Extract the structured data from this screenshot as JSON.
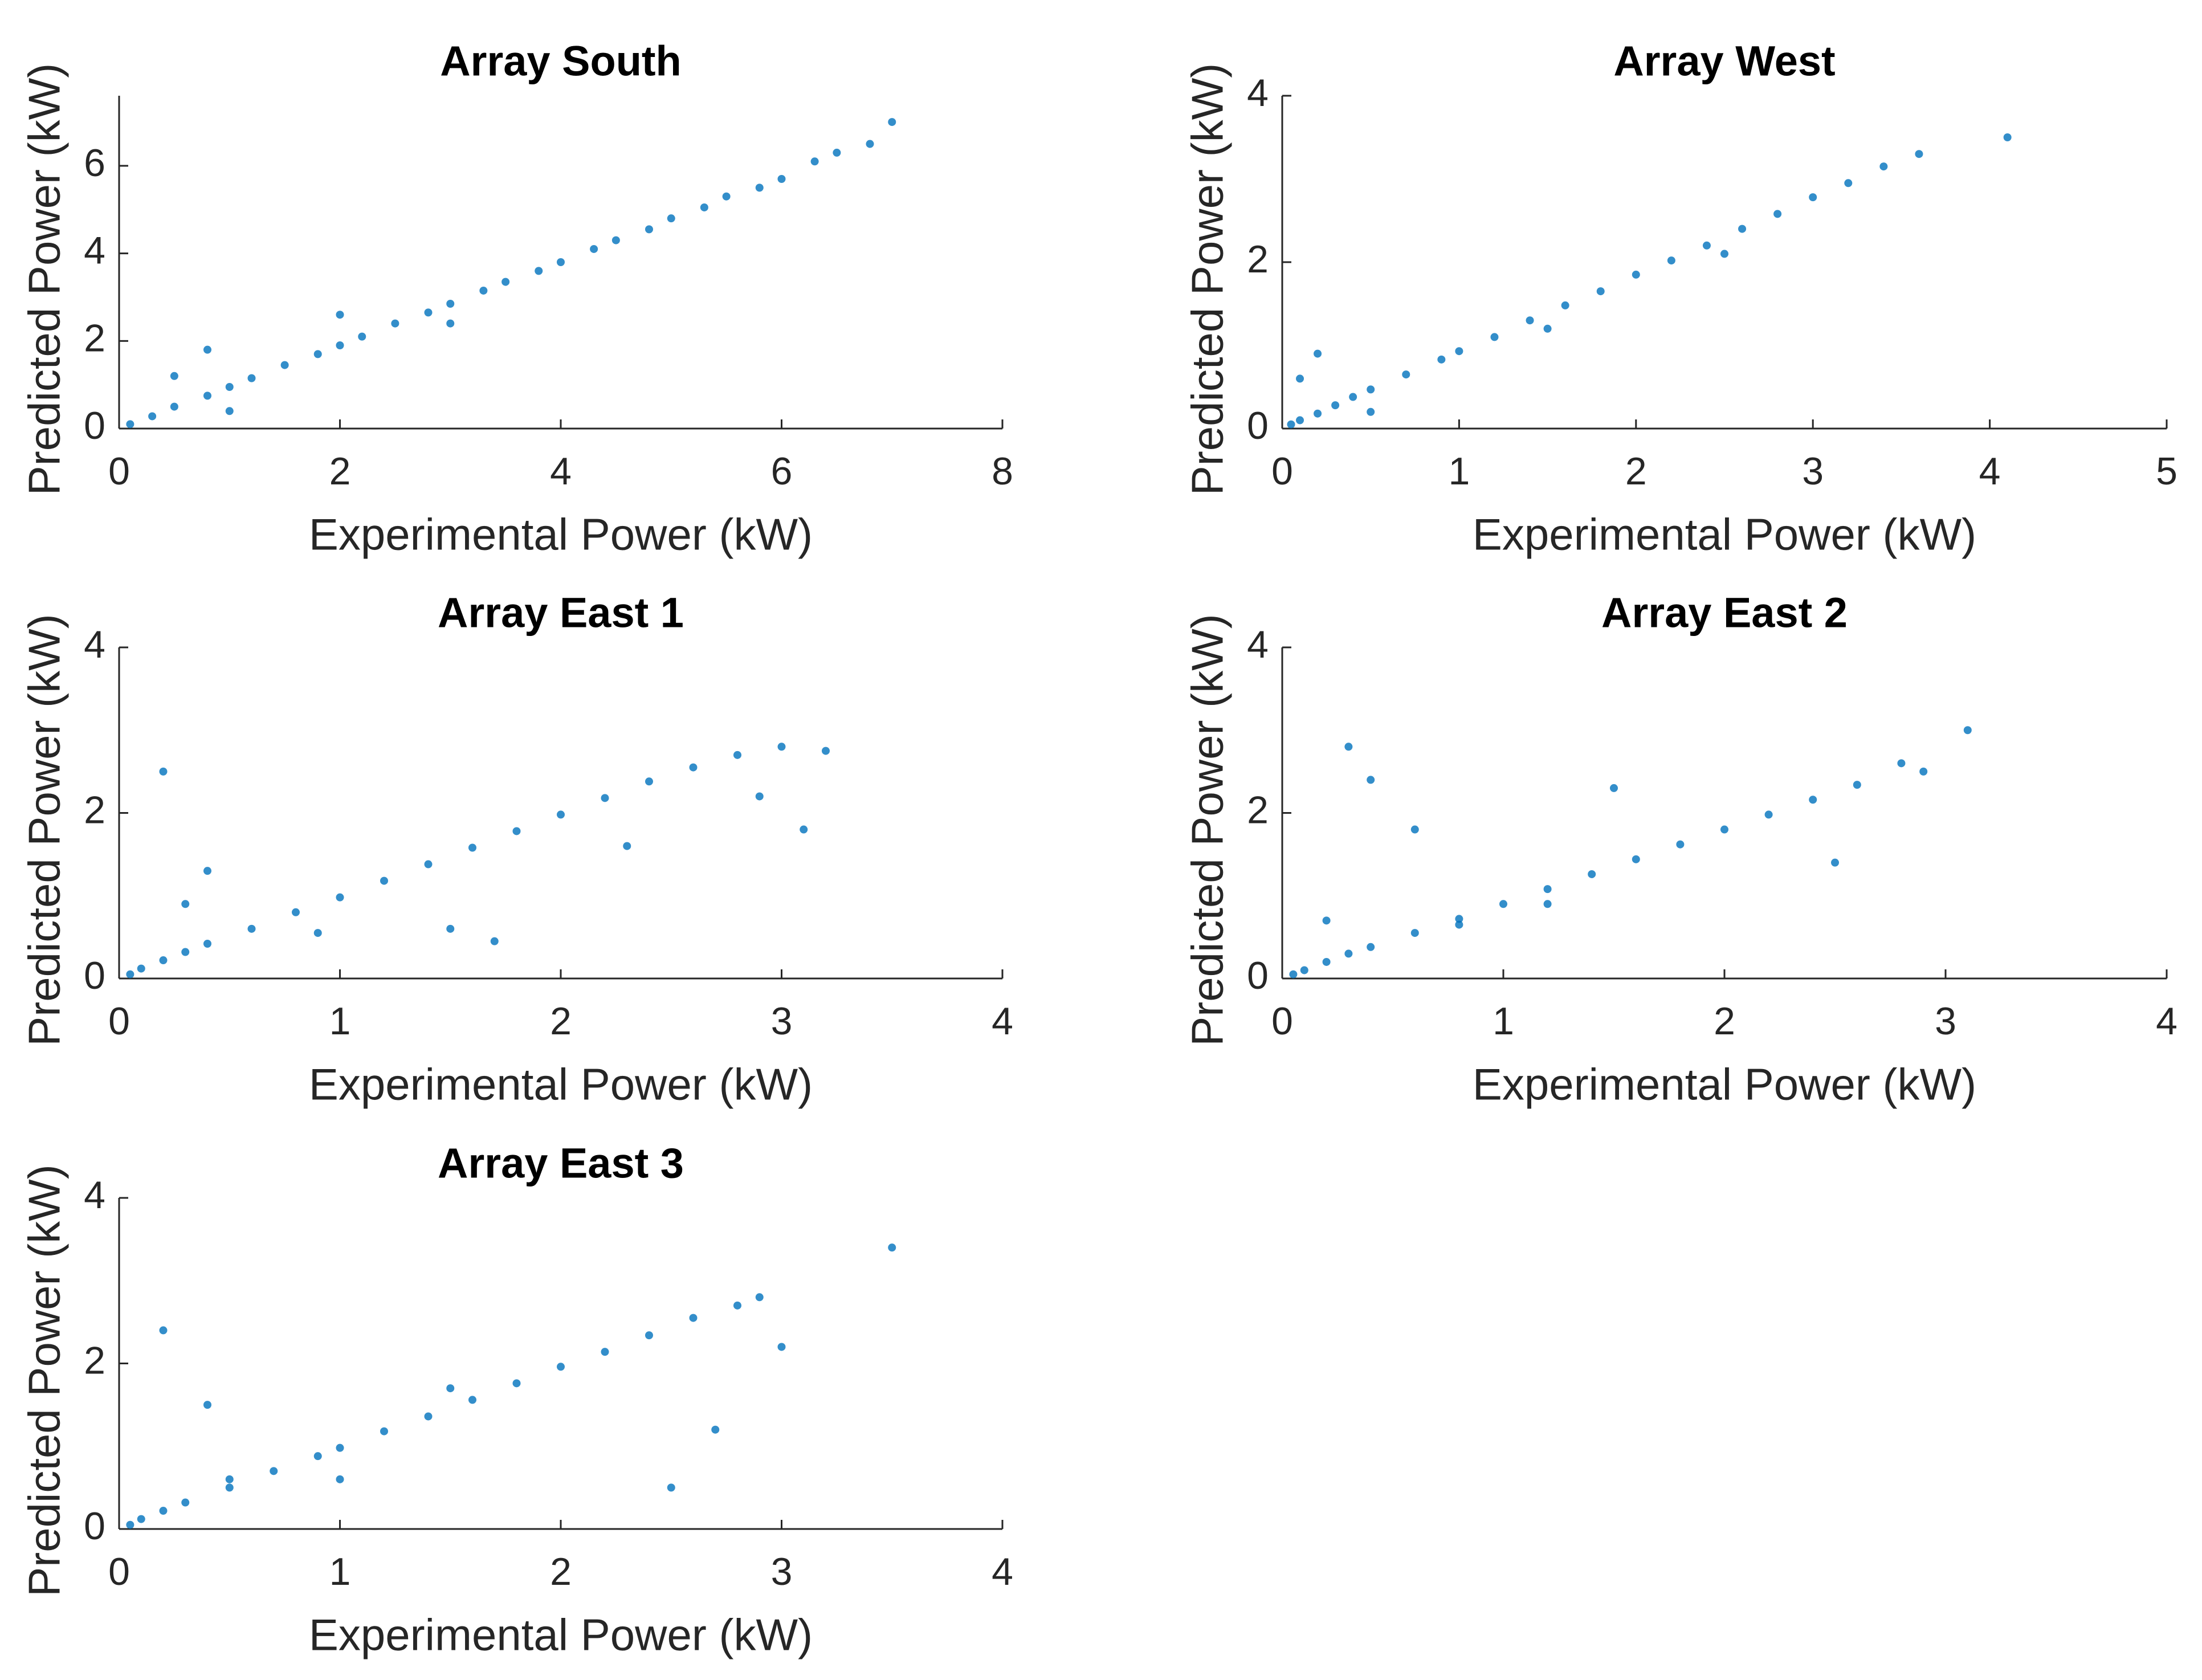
{
  "chart_data": [
    {
      "type": "scatter",
      "title": "Array South",
      "xlabel": "Experimental Power (kW)",
      "ylabel": "Predicted Power (kW)",
      "color": "#0072bd",
      "xlim": [
        0,
        8
      ],
      "ylim": [
        0,
        7.6
      ],
      "xticks": [
        0,
        2,
        4,
        6,
        8
      ],
      "yticks": [
        0,
        2,
        4,
        6
      ],
      "x": [
        0.1,
        0.3,
        0.5,
        0.8,
        1,
        1.2,
        1.5,
        1.8,
        2,
        2.2,
        2.5,
        2.8,
        3,
        3.3,
        3.5,
        3.8,
        4,
        4.3,
        4.5,
        4.8,
        5,
        5.3,
        5.5,
        5.8,
        6,
        6.3,
        6.5,
        6.8,
        7,
        0.5,
        1,
        2,
        3,
        0.8
      ],
      "y": [
        0.1,
        0.28,
        0.5,
        0.75,
        0.95,
        1.15,
        1.45,
        1.7,
        1.9,
        2.1,
        2.4,
        2.65,
        2.85,
        3.15,
        3.35,
        3.6,
        3.8,
        4.1,
        4.3,
        4.55,
        4.8,
        5.05,
        5.3,
        5.5,
        5.7,
        6.1,
        6.3,
        6.5,
        7.0,
        1.2,
        0.4,
        2.6,
        2.4,
        1.8
      ]
    },
    {
      "type": "scatter",
      "title": "Array West",
      "xlabel": "Experimental Power (kW)",
      "ylabel": "Predicted Power (kW)",
      "color": "#0072bd",
      "xlim": [
        0,
        5
      ],
      "ylim": [
        0,
        4
      ],
      "xticks": [
        0,
        1,
        2,
        3,
        4,
        5
      ],
      "yticks": [
        0,
        2,
        4
      ],
      "x": [
        0.05,
        0.1,
        0.2,
        0.3,
        0.4,
        0.5,
        0.7,
        0.9,
        1,
        1.2,
        1.4,
        1.6,
        1.8,
        2,
        2.2,
        2.4,
        2.6,
        2.8,
        3,
        3.2,
        3.4,
        3.6,
        0.1,
        0.2,
        0.5,
        1.5,
        2.5,
        4.1
      ],
      "y": [
        0.05,
        0.1,
        0.18,
        0.28,
        0.38,
        0.47,
        0.65,
        0.83,
        0.93,
        1.1,
        1.3,
        1.48,
        1.65,
        1.85,
        2.02,
        2.2,
        2.4,
        2.58,
        2.78,
        2.95,
        3.15,
        3.3,
        0.6,
        0.9,
        0.2,
        1.2,
        2.1,
        3.5
      ]
    },
    {
      "type": "scatter",
      "title": "Array East 1",
      "xlabel": "Experimental Power (kW)",
      "ylabel": "Predicted Power (kW)",
      "color": "#0072bd",
      "xlim": [
        0,
        4
      ],
      "ylim": [
        0,
        4
      ],
      "xticks": [
        0,
        1,
        2,
        3,
        4
      ],
      "yticks": [
        0,
        2,
        4
      ],
      "x": [
        0.05,
        0.1,
        0.2,
        0.3,
        0.4,
        0.6,
        0.8,
        1,
        1.2,
        1.4,
        1.6,
        1.8,
        2,
        2.2,
        2.4,
        2.6,
        2.8,
        3,
        3.2,
        0.2,
        0.4,
        0.9,
        1.5,
        2.3,
        2.9,
        3.1,
        0.3,
        1.7
      ],
      "y": [
        0.05,
        0.12,
        0.22,
        0.32,
        0.42,
        0.6,
        0.8,
        0.98,
        1.18,
        1.38,
        1.58,
        1.78,
        1.98,
        2.18,
        2.38,
        2.55,
        2.7,
        2.8,
        2.75,
        2.5,
        1.3,
        0.55,
        0.6,
        1.6,
        2.2,
        1.8,
        0.9,
        0.45
      ]
    },
    {
      "type": "scatter",
      "title": "Array East 2",
      "xlabel": "Experimental Power (kW)",
      "ylabel": "Predicted Power (kW)",
      "color": "#0072bd",
      "xlim": [
        0,
        4
      ],
      "ylim": [
        0,
        4
      ],
      "xticks": [
        0,
        1,
        2,
        3,
        4
      ],
      "yticks": [
        0,
        2,
        4
      ],
      "x": [
        0.05,
        0.1,
        0.2,
        0.3,
        0.4,
        0.6,
        0.8,
        1,
        1.2,
        1.4,
        1.6,
        1.8,
        2,
        2.2,
        2.4,
        2.6,
        2.8,
        0.3,
        0.4,
        0.2,
        0.8,
        1.5,
        2.5,
        2.9,
        0.6,
        1.2,
        3.1
      ],
      "y": [
        0.05,
        0.1,
        0.2,
        0.3,
        0.38,
        0.55,
        0.72,
        0.9,
        1.08,
        1.26,
        1.44,
        1.62,
        1.8,
        1.98,
        2.16,
        2.34,
        2.6,
        2.8,
        2.4,
        0.7,
        0.65,
        2.3,
        1.4,
        2.5,
        1.8,
        0.9,
        3.0
      ]
    },
    {
      "type": "scatter",
      "title": "Array East 3",
      "xlabel": "Experimental Power (kW)",
      "ylabel": "Predicted Power (kW)",
      "color": "#0072bd",
      "xlim": [
        0,
        4
      ],
      "ylim": [
        0,
        4
      ],
      "xticks": [
        0,
        1,
        2,
        3,
        4
      ],
      "yticks": [
        0,
        2,
        4
      ],
      "x": [
        0.05,
        0.1,
        0.2,
        0.3,
        0.5,
        0.7,
        0.9,
        1,
        1.2,
        1.4,
        1.6,
        1.8,
        2,
        2.2,
        2.4,
        2.6,
        2.8,
        0.2,
        0.5,
        1,
        1.5,
        2.5,
        2.9,
        3,
        0.4,
        2.7,
        3.5
      ],
      "y": [
        0.05,
        0.12,
        0.22,
        0.32,
        0.5,
        0.7,
        0.88,
        0.98,
        1.18,
        1.36,
        1.56,
        1.76,
        1.96,
        2.14,
        2.34,
        2.55,
        2.7,
        2.4,
        0.6,
        0.6,
        1.7,
        0.5,
        2.8,
        2.2,
        1.5,
        1.2,
        3.4
      ]
    }
  ]
}
